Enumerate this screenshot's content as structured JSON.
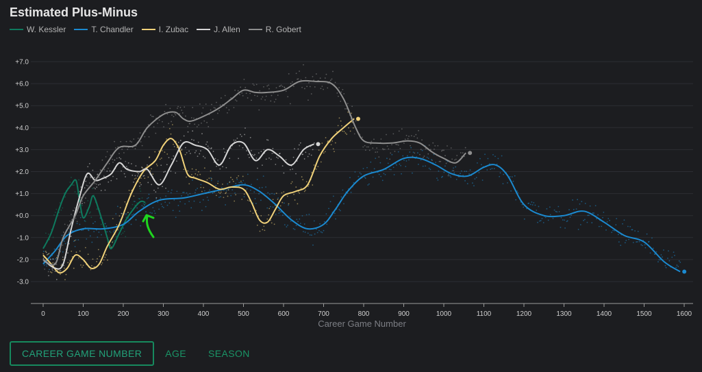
{
  "chart_data": {
    "type": "line",
    "title": "Estimated Plus-Minus",
    "xlabel": "Career Game Number",
    "ylabel": "",
    "xlim": [
      -30,
      1610
    ],
    "ylim": [
      -4.0,
      7.6
    ],
    "xticks": [
      0,
      100,
      200,
      300,
      400,
      500,
      600,
      700,
      800,
      900,
      1000,
      1100,
      1200,
      1300,
      1400,
      1500,
      1600
    ],
    "yticks": [
      7,
      6,
      5,
      4,
      3,
      2,
      1,
      0,
      -1,
      -2,
      -3
    ],
    "ytick_labels": [
      "+7.0",
      "+6.0",
      "+5.0",
      "+4.0",
      "+3.0",
      "+2.0",
      "+1.0",
      "+0.0",
      "-1.0",
      "-2.0",
      "-3.0"
    ],
    "grid": true,
    "series": [
      {
        "name": "W. Kessler",
        "color": "#0e7a5e",
        "points": [
          [
            0,
            -1.5
          ],
          [
            20,
            -0.8
          ],
          [
            40,
            0.3
          ],
          [
            55,
            1.0
          ],
          [
            70,
            1.4
          ],
          [
            82,
            1.6
          ],
          [
            90,
            0.8
          ],
          [
            100,
            -0.1
          ],
          [
            115,
            0.4
          ],
          [
            125,
            0.9
          ],
          [
            140,
            0.2
          ],
          [
            160,
            -1.0
          ],
          [
            170,
            -1.5
          ],
          [
            190,
            -0.8
          ],
          [
            210,
            -0.1
          ],
          [
            240,
            0.6
          ],
          [
            255,
            0.6
          ]
        ],
        "end_marker": false
      },
      {
        "name": "T. Chandler",
        "color": "#1b8ad0",
        "points": [
          [
            0,
            -2.2
          ],
          [
            30,
            -1.6
          ],
          [
            60,
            -0.9
          ],
          [
            100,
            -0.6
          ],
          [
            150,
            -0.6
          ],
          [
            200,
            -0.4
          ],
          [
            240,
            0.2
          ],
          [
            290,
            0.7
          ],
          [
            350,
            0.8
          ],
          [
            400,
            1.0
          ],
          [
            450,
            1.2
          ],
          [
            500,
            1.4
          ],
          [
            540,
            1.1
          ],
          [
            580,
            0.5
          ],
          [
            620,
            -0.2
          ],
          [
            660,
            -0.6
          ],
          [
            700,
            -0.4
          ],
          [
            730,
            0.3
          ],
          [
            760,
            1.1
          ],
          [
            800,
            1.8
          ],
          [
            850,
            2.1
          ],
          [
            900,
            2.6
          ],
          [
            940,
            2.6
          ],
          [
            980,
            2.3
          ],
          [
            1020,
            1.9
          ],
          [
            1060,
            1.8
          ],
          [
            1100,
            2.2
          ],
          [
            1130,
            2.3
          ],
          [
            1160,
            1.8
          ],
          [
            1200,
            0.5
          ],
          [
            1250,
            0.0
          ],
          [
            1300,
            0.0
          ],
          [
            1350,
            0.2
          ],
          [
            1400,
            -0.3
          ],
          [
            1450,
            -0.9
          ],
          [
            1500,
            -1.2
          ],
          [
            1550,
            -2.1
          ],
          [
            1590,
            -2.55
          ]
        ],
        "end_marker": true
      },
      {
        "name": "I. Zubac",
        "color": "#f1d27a",
        "points": [
          [
            0,
            -1.8
          ],
          [
            20,
            -2.2
          ],
          [
            40,
            -2.6
          ],
          [
            60,
            -2.4
          ],
          [
            80,
            -1.8
          ],
          [
            100,
            -2.0
          ],
          [
            120,
            -2.4
          ],
          [
            140,
            -2.2
          ],
          [
            160,
            -1.4
          ],
          [
            190,
            -0.4
          ],
          [
            220,
            1.0
          ],
          [
            250,
            2.0
          ],
          [
            280,
            2.5
          ],
          [
            300,
            3.2
          ],
          [
            320,
            3.5
          ],
          [
            340,
            3.0
          ],
          [
            360,
            1.9
          ],
          [
            380,
            1.7
          ],
          [
            410,
            1.5
          ],
          [
            440,
            1.2
          ],
          [
            470,
            1.3
          ],
          [
            500,
            1.2
          ],
          [
            520,
            0.6
          ],
          [
            540,
            -0.2
          ],
          [
            560,
            -0.3
          ],
          [
            580,
            0.3
          ],
          [
            600,
            0.9
          ],
          [
            630,
            1.1
          ],
          [
            660,
            1.4
          ],
          [
            690,
            2.7
          ],
          [
            720,
            3.5
          ],
          [
            750,
            4.0
          ],
          [
            776,
            4.4
          ]
        ],
        "end_marker": true
      },
      {
        "name": "J. Allen",
        "color": "#d6d6d6",
        "points": [
          [
            0,
            -2.0
          ],
          [
            30,
            -2.4
          ],
          [
            50,
            -2.2
          ],
          [
            70,
            -0.6
          ],
          [
            90,
            0.8
          ],
          [
            110,
            1.9
          ],
          [
            130,
            1.6
          ],
          [
            150,
            1.7
          ],
          [
            170,
            1.9
          ],
          [
            190,
            2.4
          ],
          [
            210,
            2.1
          ],
          [
            240,
            2.0
          ],
          [
            260,
            2.1
          ],
          [
            290,
            1.4
          ],
          [
            320,
            2.3
          ],
          [
            350,
            3.3
          ],
          [
            380,
            3.2
          ],
          [
            410,
            3.0
          ],
          [
            440,
            2.3
          ],
          [
            470,
            3.2
          ],
          [
            500,
            3.3
          ],
          [
            530,
            2.5
          ],
          [
            560,
            3.0
          ],
          [
            590,
            2.7
          ],
          [
            620,
            2.3
          ],
          [
            650,
            3.0
          ],
          [
            676,
            3.25
          ]
        ],
        "end_marker": true
      },
      {
        "name": "R. Gobert",
        "color": "#8e8e8e",
        "points": [
          [
            0,
            -2.0
          ],
          [
            30,
            -2.2
          ],
          [
            50,
            -1.0
          ],
          [
            80,
            0.0
          ],
          [
            100,
            0.9
          ],
          [
            130,
            1.6
          ],
          [
            160,
            2.4
          ],
          [
            190,
            3.1
          ],
          [
            230,
            3.2
          ],
          [
            260,
            4.0
          ],
          [
            300,
            4.6
          ],
          [
            330,
            4.7
          ],
          [
            350,
            4.4
          ],
          [
            370,
            4.3
          ],
          [
            410,
            4.6
          ],
          [
            440,
            4.9
          ],
          [
            470,
            5.3
          ],
          [
            500,
            5.7
          ],
          [
            530,
            5.6
          ],
          [
            560,
            5.6
          ],
          [
            600,
            5.7
          ],
          [
            640,
            6.1
          ],
          [
            680,
            6.1
          ],
          [
            720,
            6.0
          ],
          [
            750,
            5.3
          ],
          [
            780,
            4.0
          ],
          [
            800,
            3.4
          ],
          [
            830,
            3.3
          ],
          [
            870,
            3.3
          ],
          [
            910,
            3.4
          ],
          [
            940,
            3.3
          ],
          [
            970,
            2.9
          ],
          [
            1000,
            2.6
          ],
          [
            1030,
            2.4
          ],
          [
            1055,
            2.85
          ]
        ],
        "end_marker": true
      }
    ]
  },
  "controls": {
    "career_game_number": "CAREER GAME NUMBER",
    "age": "AGE",
    "season": "SEASON"
  }
}
